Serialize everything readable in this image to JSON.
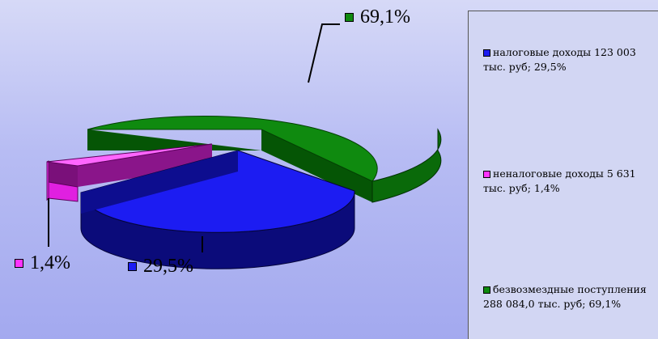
{
  "chart_data": {
    "type": "pie",
    "title": "",
    "slices": [
      {
        "label": "налоговые доходы 123 003 тыс. руб; 29,5%",
        "value": 29.5,
        "data_label": "29,5%",
        "color": "#1c1cf2",
        "dark": "#0d0d8f",
        "side": "#0b0b7a"
      },
      {
        "label": "неналоговые доходы 5 631 тыс. руб; 1,4%",
        "value": 1.4,
        "data_label": "1,4%",
        "color": "#ff33ff",
        "dark": "#8a158a",
        "side": "#b322b3"
      },
      {
        "label": "безвозмездные поступления 288 084,0 тыс. руб; 69,1%",
        "value": 69.1,
        "data_label": "69,1%",
        "color": "#0f8a0f",
        "dark": "#055505",
        "side": "#0a6a0a"
      }
    ],
    "legend_position": "right"
  }
}
